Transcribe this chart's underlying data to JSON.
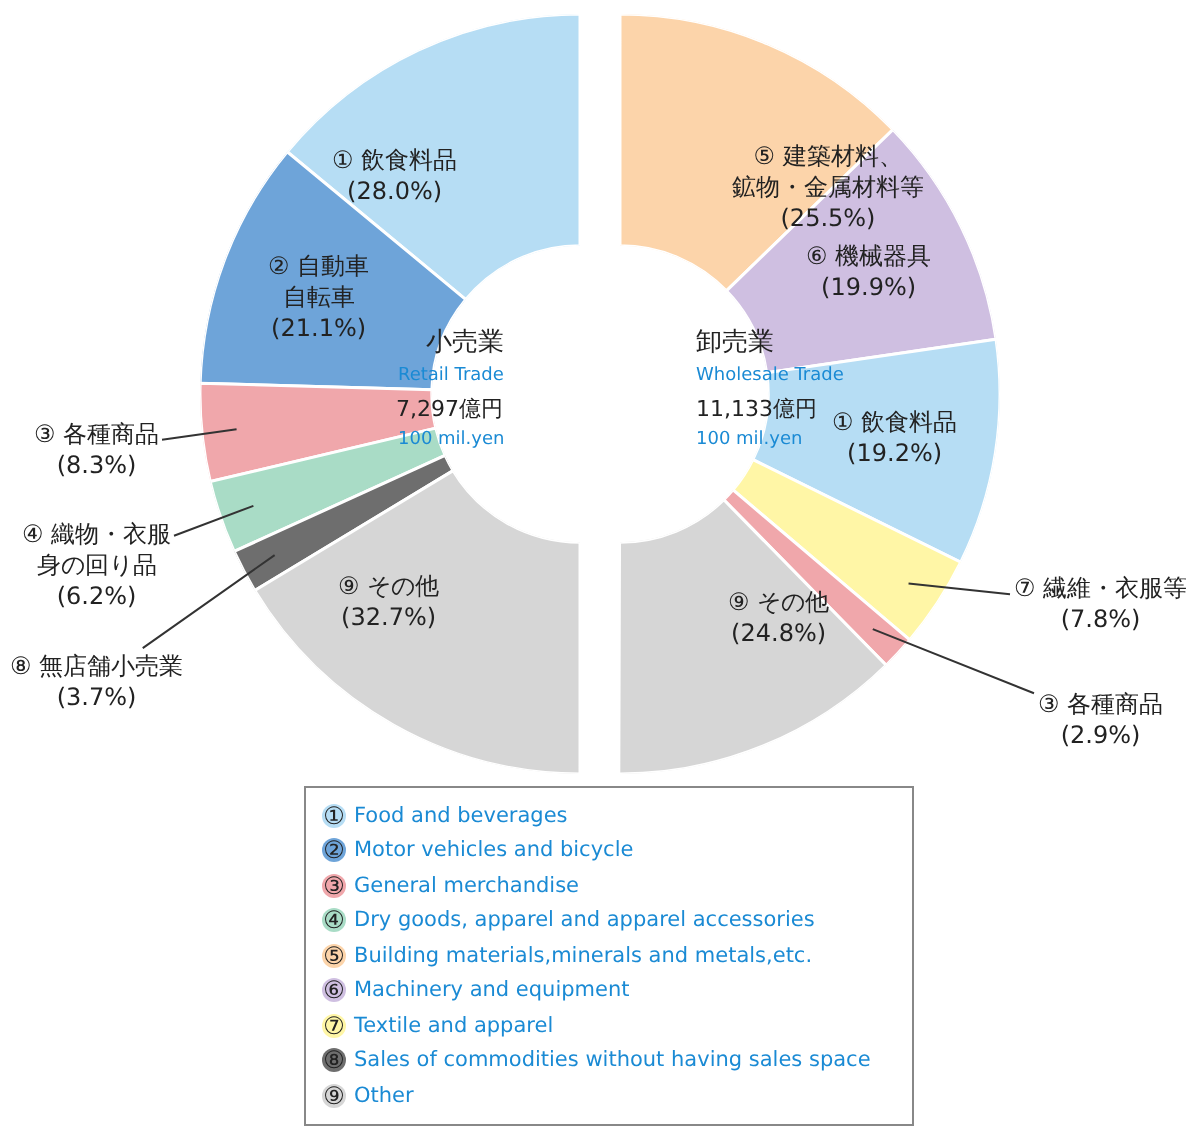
{
  "chart_data": [
    {
      "type": "donut",
      "categories": [
        "① 飲食料品",
        "② 自動車自転車",
        "③ 各種商品",
        "④ 織物・衣服身の回り品",
        "⑧ 無店舗小売業",
        "⑨ その他"
      ],
      "values": [
        28.0,
        21.1,
        8.3,
        6.2,
        3.7,
        32.7
      ],
      "value_labels": [
        "(28.0%)",
        "(21.1%)",
        "(8.3%)",
        "(6.2%)",
        "(3.7%)",
        "(32.7%)"
      ],
      "colors": [
        "#b6ddf4",
        "#6ea4d9",
        "#f0a7ab",
        "#a9dcc6",
        "#6e6e6e",
        "#d6d6d6"
      ],
      "annotations": [
        "小売業",
        "Retail Trade",
        "7,297億円",
        "100 mil.yen"
      ]
    },
    {
      "type": "donut",
      "categories": [
        "⑤ 建築材料、鉱物・金属材料等",
        "⑥ 機械器具",
        "① 飲食料品",
        "⑦ 繊維・衣服等",
        "③ 各種商品",
        "⑨ その他"
      ],
      "values": [
        25.5,
        19.9,
        19.2,
        7.8,
        2.9,
        24.8
      ],
      "value_labels": [
        "(25.5%)",
        "(19.9%)",
        "(19.2%)",
        "(7.8%)",
        "(2.9%)",
        "(24.8%)"
      ],
      "colors": [
        "#fcd4aa",
        "#cfbfe1",
        "#b6ddf4",
        "#fff6a6",
        "#f0a7ab",
        "#d6d6d6"
      ],
      "annotations": [
        "卸売業",
        "Wholesale Trade",
        "11,133億円",
        "100 mil.yen"
      ]
    },
    {
      "type": "other",
      "categories": [
        "① Food and beverages",
        "② Motor vehicles and bicycle",
        "③ General merchandise",
        "④ Dry goods, apparel and apparel accessories",
        "⑤ Building materials,minerals and metals,etc.",
        "⑥ Machinery and equipment",
        "⑦ Textile and apparel",
        "⑧ Sales of commodities without having sales space",
        "⑨ Other"
      ],
      "colors": [
        "#b6ddf4",
        "#6ea4d9",
        "#f0a7ab",
        "#a9dcc6",
        "#fcd4aa",
        "#cfbfe1",
        "#fff6a6",
        "#6e6e6e",
        "#d6d6d6"
      ]
    }
  ]
}
